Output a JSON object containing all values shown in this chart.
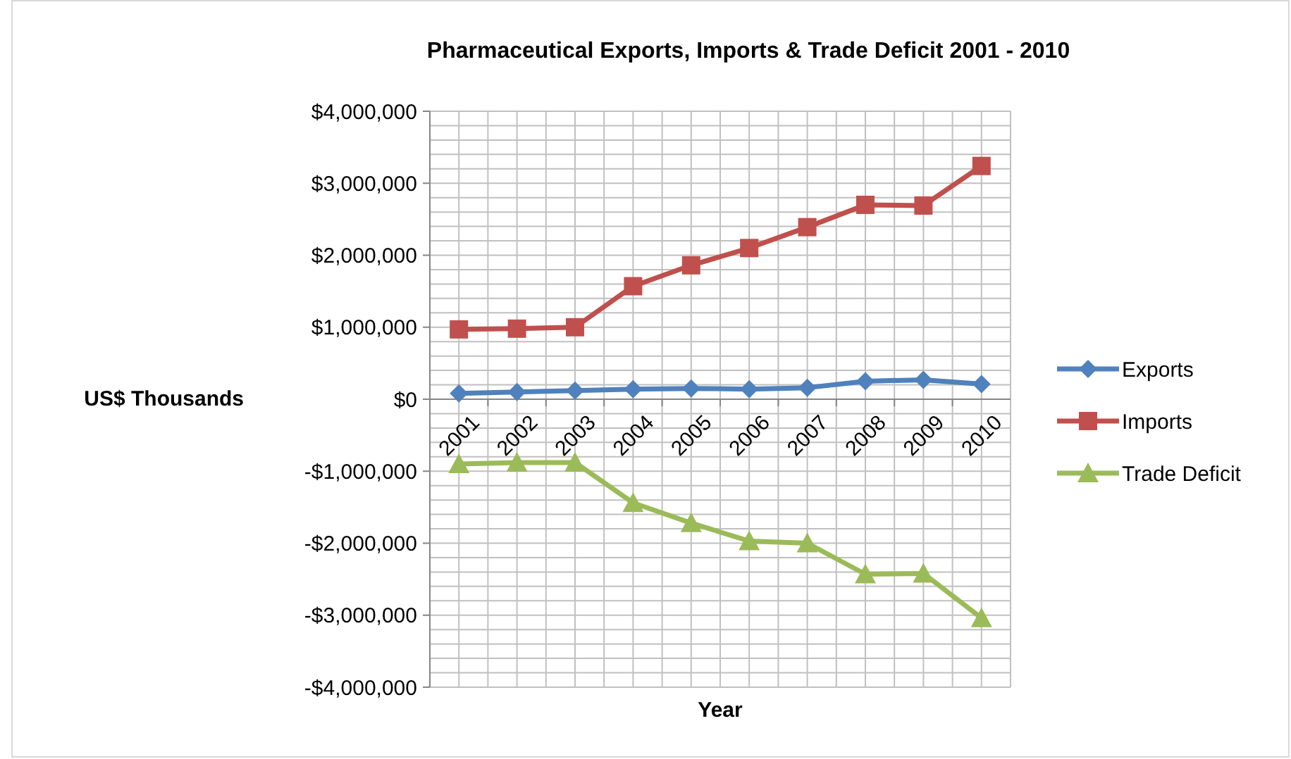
{
  "chart_data": {
    "type": "line",
    "title": "Pharmaceutical Exports, Imports & Trade Deficit 2001 - 2010",
    "xlabel": "Year",
    "ylabel": "US$ Thousands",
    "categories": [
      "2001",
      "2002",
      "2003",
      "2004",
      "2005",
      "2006",
      "2007",
      "2008",
      "2009",
      "2010"
    ],
    "series": [
      {
        "name": "Exports",
        "color": "#4f81bd",
        "marker": "diamond",
        "values": [
          80000,
          100000,
          120000,
          140000,
          150000,
          140000,
          160000,
          250000,
          270000,
          210000
        ]
      },
      {
        "name": "Imports",
        "color": "#c0504d",
        "marker": "square",
        "values": [
          970000,
          980000,
          1000000,
          1570000,
          1860000,
          2100000,
          2390000,
          2700000,
          2690000,
          3240000
        ]
      },
      {
        "name": "Trade Deficit",
        "color": "#9bbb59",
        "marker": "triangle",
        "values": [
          -900000,
          -880000,
          -880000,
          -1440000,
          -1720000,
          -1970000,
          -2000000,
          -2430000,
          -2420000,
          -3040000
        ]
      }
    ],
    "ylim": [
      -4000000,
      4000000
    ],
    "yticks": [
      {
        "value": -4000000,
        "label": "-$4,000,000"
      },
      {
        "value": -3800000,
        "label": null
      },
      {
        "value": -3600000,
        "label": null
      },
      {
        "value": -3400000,
        "label": null
      },
      {
        "value": -3200000,
        "label": null
      },
      {
        "value": -3000000,
        "label": "-$3,000,000"
      },
      {
        "value": -2800000,
        "label": null
      },
      {
        "value": -2600000,
        "label": null
      },
      {
        "value": -2400000,
        "label": null
      },
      {
        "value": -2200000,
        "label": null
      },
      {
        "value": -2000000,
        "label": "-$2,000,000"
      },
      {
        "value": -1800000,
        "label": null
      },
      {
        "value": -1600000,
        "label": null
      },
      {
        "value": -1400000,
        "label": null
      },
      {
        "value": -1200000,
        "label": null
      },
      {
        "value": -1000000,
        "label": "-$1,000,000"
      },
      {
        "value": -800000,
        "label": null
      },
      {
        "value": -600000,
        "label": null
      },
      {
        "value": -400000,
        "label": null
      },
      {
        "value": -200000,
        "label": null
      },
      {
        "value": 0,
        "label": "$0"
      },
      {
        "value": 200000,
        "label": null
      },
      {
        "value": 400000,
        "label": null
      },
      {
        "value": 600000,
        "label": null
      },
      {
        "value": 800000,
        "label": null
      },
      {
        "value": 1000000,
        "label": "$1,000,000"
      },
      {
        "value": 1200000,
        "label": null
      },
      {
        "value": 1400000,
        "label": null
      },
      {
        "value": 1600000,
        "label": null
      },
      {
        "value": 1800000,
        "label": null
      },
      {
        "value": 2000000,
        "label": "$2,000,000"
      },
      {
        "value": 2200000,
        "label": null
      },
      {
        "value": 2400000,
        "label": null
      },
      {
        "value": 2600000,
        "label": null
      },
      {
        "value": 2800000,
        "label": null
      },
      {
        "value": 3000000,
        "label": "$3,000,000"
      },
      {
        "value": 3200000,
        "label": null
      },
      {
        "value": 3400000,
        "label": null
      },
      {
        "value": 3600000,
        "label": null
      },
      {
        "value": 3800000,
        "label": null
      },
      {
        "value": 4000000,
        "label": "$4,000,000"
      }
    ],
    "grid": true,
    "legend": "right",
    "line_style": "solid"
  }
}
